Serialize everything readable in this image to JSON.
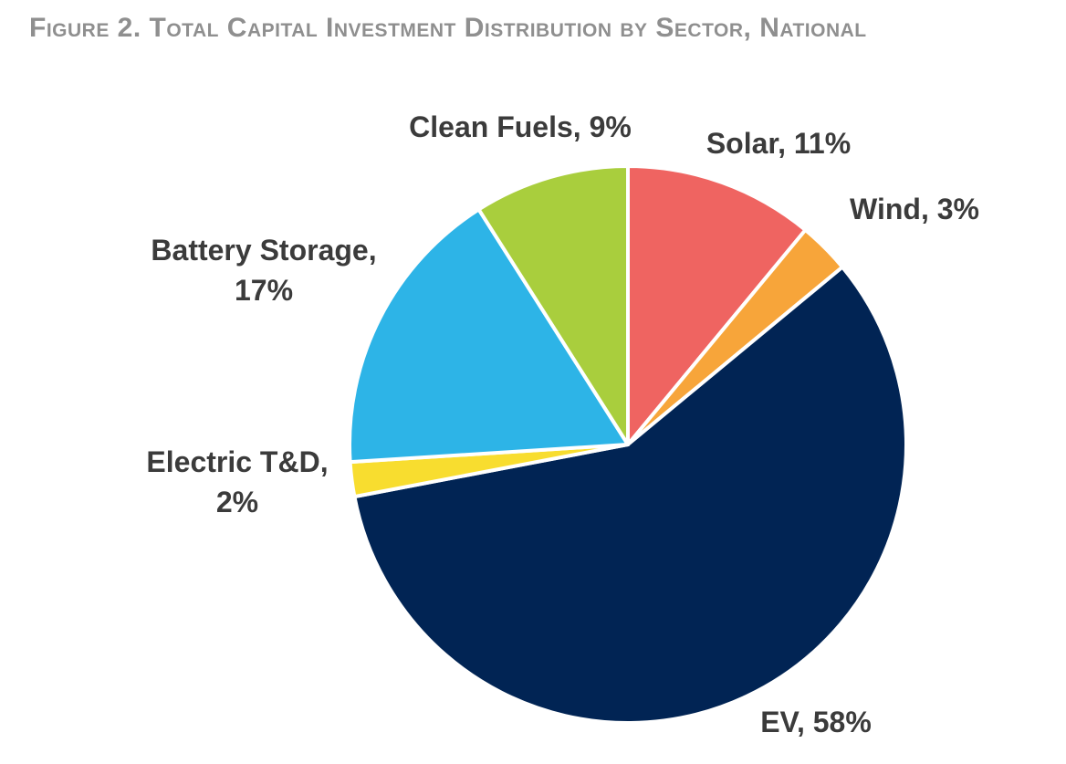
{
  "title": "Figure 2. Total Capital Investment Distribution by Sector, National",
  "chart_data": {
    "type": "pie",
    "title": "Figure 2. Total Capital Investment Distribution by Sector, National",
    "start": "12 o'clock",
    "direction": "clockwise",
    "slices": [
      {
        "key": "solar",
        "label": "Solar",
        "value": 11,
        "color": "#ef6461",
        "label_lines": [
          "Solar, 11%"
        ]
      },
      {
        "key": "wind",
        "label": "Wind",
        "value": 3,
        "color": "#f7a53a",
        "label_lines": [
          "Wind, 3%"
        ]
      },
      {
        "key": "ev",
        "label": "EV",
        "value": 58,
        "color": "#012454",
        "label_lines": [
          "EV, 58%"
        ]
      },
      {
        "key": "electric-td",
        "label": "Electric T&D",
        "value": 2,
        "color": "#f8dd2f",
        "label_lines": [
          "Electric T&D,",
          "2%"
        ]
      },
      {
        "key": "battery-storage",
        "label": "Battery Storage",
        "value": 17,
        "color": "#2db4e7",
        "label_lines": [
          "Battery Storage,",
          "17%"
        ]
      },
      {
        "key": "clean-fuels",
        "label": "Clean Fuels",
        "value": 9,
        "color": "#a9ce3d",
        "label_lines": [
          "Clean Fuels, 9%"
        ]
      }
    ]
  }
}
